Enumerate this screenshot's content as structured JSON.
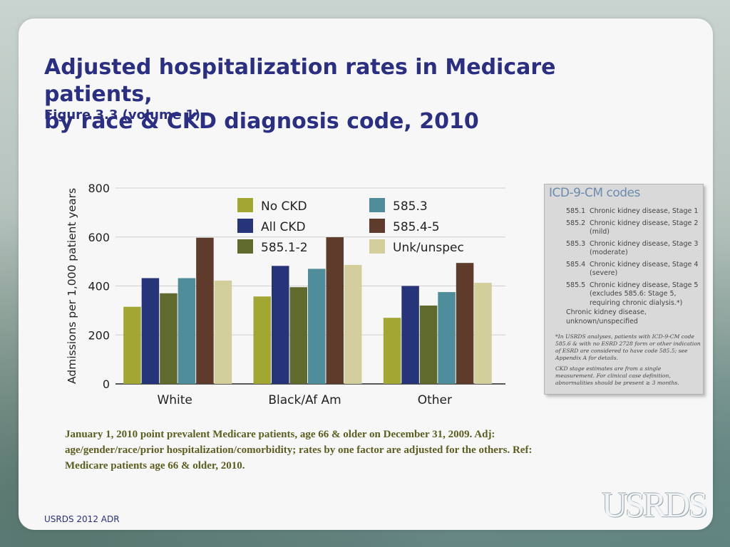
{
  "title_line1": "Adjusted hospitalization rates in Medicare patients,",
  "title_line2": "by race & CKD diagnosis code, 2010",
  "subtitle": "Figure 3.3 (volume 1)",
  "chart_data": {
    "type": "bar",
    "ylabel": "Admissions per 1,000 patient years",
    "xlabel": "",
    "ylim": [
      0,
      800
    ],
    "yticks": [
      0,
      200,
      400,
      600,
      800
    ],
    "categories": [
      "White",
      "Black/Af Am",
      "Other"
    ],
    "series": [
      {
        "name": "No CKD",
        "color": "#a2a633",
        "values": [
          315,
          357,
          270
        ]
      },
      {
        "name": "All CKD",
        "color": "#263479",
        "values": [
          432,
          482,
          400
        ]
      },
      {
        "name": "585.1-2",
        "color": "#5f6a2c",
        "values": [
          370,
          395,
          320
        ]
      },
      {
        "name": "585.3",
        "color": "#4f8d9b",
        "values": [
          432,
          470,
          375
        ]
      },
      {
        "name": "585.4-5",
        "color": "#5e3b2a",
        "values": [
          597,
          599,
          494
        ]
      },
      {
        "name": "Unk/unspec",
        "color": "#d2cf9d",
        "values": [
          422,
          486,
          413
        ]
      }
    ],
    "legend_position": "top"
  },
  "icd": {
    "title": "ICD-9-CM codes",
    "rows": [
      {
        "code": "585.1",
        "desc": "Chronic kidney disease, Stage 1"
      },
      {
        "code": "585.2",
        "desc": "Chronic kidney disease, Stage 2 (mild)"
      },
      {
        "code": "585.3",
        "desc": "Chronic kidney disease, Stage 3 (moderate)"
      },
      {
        "code": "585.4",
        "desc": "Chronic kidney disease, Stage 4 (severe)"
      },
      {
        "code": "585.5",
        "desc": "Chronic kidney disease, Stage 5 (excludes 585.6: Stage 5, requiring chronic dialysis.*)"
      }
    ],
    "unknown": "Chronic kidney disease, unknown/unspecified",
    "footnote1": "*In USRDS analyses, patients with ICD-9-CM code 585.6 & with no ESRD 2728 form or other indication of ESRD are considered to have code 585.5; see Appendix A for details.",
    "footnote2": "CKD stage estimates are from a single measurement. For clinical case definition, abnormalities should be present ≥ 3 months."
  },
  "note": "January 1, 2010 point prevalent Medicare patients, age 66 & older on December 31, 2009. Adj: age/gender/race/prior hospitalization/comorbidity; rates by one factor are adjusted for the others. Ref: Medicare patients age 66 & older, 2010.",
  "footer": "USRDS 2012 ADR",
  "logo": "USRDS"
}
